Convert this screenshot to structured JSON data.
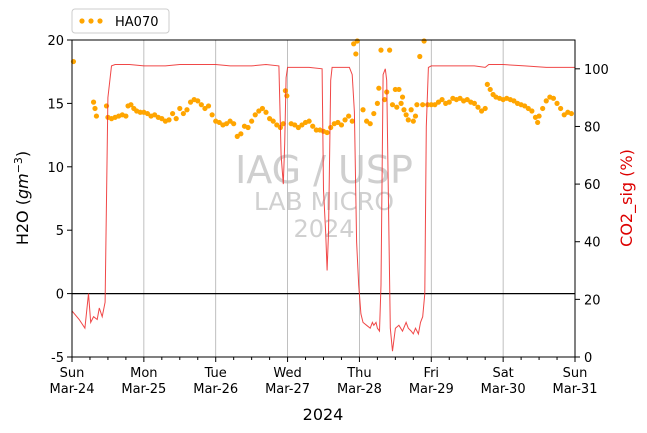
{
  "chart_data": {
    "type": "line",
    "title": "",
    "xlabel": "2024",
    "ylabel_left": "H2O (gm⁻³)",
    "ylabel_left_main": "H2O (",
    "ylabel_left_unit": "gm",
    "ylabel_left_exp": "−3",
    "ylabel_left_close": ")",
    "ylabel_right": "CO2_sig (%)",
    "ylim_left": [
      -5,
      20
    ],
    "ylim_right": [
      0,
      110
    ],
    "yticks_left": [
      -5,
      0,
      5,
      10,
      15,
      20
    ],
    "yticks_right": [
      0,
      20,
      40,
      60,
      80,
      100
    ],
    "xlim_days": [
      0,
      7
    ],
    "xticks": [
      {
        "day": 0,
        "line1": "Sun",
        "line2": "Mar-24"
      },
      {
        "day": 1,
        "line1": "Mon",
        "line2": "Mar-25"
      },
      {
        "day": 2,
        "line1": "Tue",
        "line2": "Mar-26"
      },
      {
        "day": 3,
        "line1": "Wed",
        "line2": "Mar-27"
      },
      {
        "day": 4,
        "line1": "Thu",
        "line2": "Mar-28"
      },
      {
        "day": 5,
        "line1": "Fri",
        "line2": "Mar-29"
      },
      {
        "day": 6,
        "line1": "Sat",
        "line2": "Mar-30"
      },
      {
        "day": 7,
        "line1": "Sun",
        "line2": "Mar-31"
      }
    ],
    "grid": "vertical",
    "legend_position": "top-left",
    "zero_line_left": 0,
    "series": [
      {
        "name": "HA070",
        "axis": "left",
        "style": "dots",
        "color": "#ffa500",
        "points": [
          [
            0.02,
            18.3
          ],
          [
            0.3,
            15.1
          ],
          [
            0.32,
            14.6
          ],
          [
            0.34,
            14.0
          ],
          [
            0.48,
            14.8
          ],
          [
            0.5,
            13.9
          ],
          [
            0.55,
            13.8
          ],
          [
            0.6,
            13.9
          ],
          [
            0.65,
            14.0
          ],
          [
            0.7,
            14.1
          ],
          [
            0.75,
            14.0
          ],
          [
            0.78,
            14.8
          ],
          [
            0.82,
            14.9
          ],
          [
            0.86,
            14.6
          ],
          [
            0.9,
            14.4
          ],
          [
            0.95,
            14.3
          ],
          [
            1.0,
            14.3
          ],
          [
            1.05,
            14.2
          ],
          [
            1.1,
            14.0
          ],
          [
            1.15,
            14.1
          ],
          [
            1.2,
            13.9
          ],
          [
            1.25,
            13.8
          ],
          [
            1.3,
            13.6
          ],
          [
            1.35,
            13.7
          ],
          [
            1.4,
            14.2
          ],
          [
            1.45,
            13.8
          ],
          [
            1.5,
            14.6
          ],
          [
            1.55,
            14.2
          ],
          [
            1.6,
            14.5
          ],
          [
            1.65,
            15.1
          ],
          [
            1.7,
            15.3
          ],
          [
            1.75,
            15.2
          ],
          [
            1.8,
            14.9
          ],
          [
            1.85,
            14.6
          ],
          [
            1.9,
            14.8
          ],
          [
            1.95,
            14.1
          ],
          [
            2.0,
            13.6
          ],
          [
            2.05,
            13.5
          ],
          [
            2.1,
            13.3
          ],
          [
            2.15,
            13.4
          ],
          [
            2.2,
            13.6
          ],
          [
            2.25,
            13.4
          ],
          [
            2.3,
            12.4
          ],
          [
            2.35,
            12.6
          ],
          [
            2.4,
            13.2
          ],
          [
            2.45,
            13.1
          ],
          [
            2.5,
            13.6
          ],
          [
            2.55,
            14.1
          ],
          [
            2.6,
            14.4
          ],
          [
            2.65,
            14.6
          ],
          [
            2.7,
            14.3
          ],
          [
            2.75,
            13.8
          ],
          [
            2.8,
            13.6
          ],
          [
            2.85,
            13.3
          ],
          [
            2.9,
            13.1
          ],
          [
            2.94,
            13.4
          ],
          [
            2.97,
            16.0
          ],
          [
            2.99,
            15.6
          ],
          [
            3.05,
            13.4
          ],
          [
            3.1,
            13.3
          ],
          [
            3.15,
            13.1
          ],
          [
            3.2,
            13.3
          ],
          [
            3.25,
            13.5
          ],
          [
            3.3,
            13.6
          ],
          [
            3.35,
            13.2
          ],
          [
            3.4,
            12.9
          ],
          [
            3.45,
            12.9
          ],
          [
            3.5,
            12.8
          ],
          [
            3.55,
            12.7
          ],
          [
            3.6,
            13.1
          ],
          [
            3.65,
            13.4
          ],
          [
            3.7,
            13.5
          ],
          [
            3.75,
            13.3
          ],
          [
            3.8,
            13.7
          ],
          [
            3.85,
            14.0
          ],
          [
            3.9,
            13.6
          ],
          [
            3.92,
            19.7
          ],
          [
            3.95,
            18.9
          ],
          [
            3.97,
            20.0
          ],
          [
            4.05,
            14.5
          ],
          [
            4.1,
            13.6
          ],
          [
            4.15,
            13.4
          ],
          [
            4.2,
            14.2
          ],
          [
            4.25,
            15.0
          ],
          [
            4.27,
            16.2
          ],
          [
            4.3,
            19.2
          ],
          [
            4.35,
            15.3
          ],
          [
            4.38,
            15.9
          ],
          [
            4.42,
            19.2
          ],
          [
            4.46,
            14.9
          ],
          [
            4.5,
            16.1
          ],
          [
            4.52,
            14.7
          ],
          [
            4.55,
            16.1
          ],
          [
            4.58,
            15.0
          ],
          [
            4.6,
            15.5
          ],
          [
            4.62,
            14.5
          ],
          [
            4.65,
            14.1
          ],
          [
            4.68,
            13.7
          ],
          [
            4.72,
            14.5
          ],
          [
            4.75,
            13.6
          ],
          [
            4.78,
            14.0
          ],
          [
            4.8,
            14.9
          ],
          [
            4.84,
            18.7
          ],
          [
            4.88,
            14.9
          ],
          [
            4.9,
            20.0
          ],
          [
            4.95,
            14.9
          ],
          [
            5.0,
            14.9
          ],
          [
            5.05,
            14.9
          ],
          [
            5.1,
            15.1
          ],
          [
            5.15,
            15.3
          ],
          [
            5.2,
            15.0
          ],
          [
            5.25,
            15.1
          ],
          [
            5.3,
            15.4
          ],
          [
            5.35,
            15.3
          ],
          [
            5.4,
            15.4
          ],
          [
            5.45,
            15.2
          ],
          [
            5.5,
            15.3
          ],
          [
            5.55,
            15.1
          ],
          [
            5.6,
            15.0
          ],
          [
            5.65,
            14.7
          ],
          [
            5.7,
            14.4
          ],
          [
            5.75,
            14.6
          ],
          [
            5.78,
            16.5
          ],
          [
            5.82,
            16.1
          ],
          [
            5.86,
            15.7
          ],
          [
            5.9,
            15.5
          ],
          [
            5.95,
            15.4
          ],
          [
            6.0,
            15.3
          ],
          [
            6.05,
            15.4
          ],
          [
            6.1,
            15.3
          ],
          [
            6.15,
            15.2
          ],
          [
            6.2,
            15.0
          ],
          [
            6.25,
            14.9
          ],
          [
            6.3,
            14.8
          ],
          [
            6.35,
            14.6
          ],
          [
            6.4,
            14.4
          ],
          [
            6.45,
            13.9
          ],
          [
            6.48,
            13.5
          ],
          [
            6.5,
            14.0
          ],
          [
            6.55,
            14.6
          ],
          [
            6.6,
            15.2
          ],
          [
            6.65,
            15.5
          ],
          [
            6.7,
            15.4
          ],
          [
            6.75,
            15.0
          ],
          [
            6.8,
            14.6
          ],
          [
            6.85,
            14.1
          ],
          [
            6.9,
            14.3
          ],
          [
            6.95,
            14.2
          ]
        ]
      },
      {
        "name": "CO2_sig",
        "axis": "right",
        "style": "line",
        "color": "#ee3333",
        "points": [
          [
            0.0,
            16
          ],
          [
            0.1,
            13
          ],
          [
            0.18,
            10
          ],
          [
            0.23,
            22
          ],
          [
            0.26,
            12
          ],
          [
            0.3,
            14
          ],
          [
            0.35,
            13
          ],
          [
            0.38,
            17
          ],
          [
            0.42,
            14
          ],
          [
            0.46,
            19
          ],
          [
            0.5,
            90
          ],
          [
            0.55,
            101
          ],
          [
            0.6,
            101.5
          ],
          [
            0.8,
            101.5
          ],
          [
            1.0,
            101
          ],
          [
            1.3,
            101
          ],
          [
            1.5,
            101.5
          ],
          [
            1.8,
            101.5
          ],
          [
            2.0,
            101.5
          ],
          [
            2.2,
            101
          ],
          [
            2.5,
            101
          ],
          [
            2.7,
            101.5
          ],
          [
            2.88,
            101
          ],
          [
            2.91,
            70
          ],
          [
            2.94,
            60
          ],
          [
            2.96,
            74
          ],
          [
            2.98,
            97
          ],
          [
            3.0,
            100.5
          ],
          [
            3.3,
            100.5
          ],
          [
            3.48,
            100
          ],
          [
            3.5,
            58
          ],
          [
            3.53,
            43
          ],
          [
            3.55,
            30
          ],
          [
            3.57,
            43
          ],
          [
            3.6,
            96
          ],
          [
            3.62,
            100.5
          ],
          [
            3.8,
            100.5
          ],
          [
            3.86,
            100.5
          ],
          [
            3.9,
            98
          ],
          [
            3.93,
            85
          ],
          [
            3.96,
            40
          ],
          [
            3.99,
            25
          ],
          [
            4.02,
            15
          ],
          [
            4.05,
            12
          ],
          [
            4.1,
            11
          ],
          [
            4.15,
            10
          ],
          [
            4.18,
            12
          ],
          [
            4.2,
            11
          ],
          [
            4.23,
            12
          ],
          [
            4.25,
            10
          ],
          [
            4.28,
            9
          ],
          [
            4.3,
            25
          ],
          [
            4.33,
            98
          ],
          [
            4.36,
            100
          ],
          [
            4.38,
            96
          ],
          [
            4.4,
            60
          ],
          [
            4.43,
            10
          ],
          [
            4.46,
            2
          ],
          [
            4.5,
            10
          ],
          [
            4.55,
            11
          ],
          [
            4.6,
            9
          ],
          [
            4.65,
            12
          ],
          [
            4.68,
            10
          ],
          [
            4.72,
            9
          ],
          [
            4.75,
            8
          ],
          [
            4.78,
            10
          ],
          [
            4.82,
            8
          ],
          [
            4.85,
            12
          ],
          [
            4.88,
            14
          ],
          [
            4.91,
            22
          ],
          [
            4.93,
            80
          ],
          [
            4.96,
            100.5
          ],
          [
            5.0,
            101
          ],
          [
            5.3,
            101
          ],
          [
            5.6,
            101
          ],
          [
            5.75,
            100.5
          ],
          [
            5.8,
            101.5
          ],
          [
            6.0,
            101.5
          ],
          [
            6.3,
            101
          ],
          [
            6.6,
            100.5
          ],
          [
            6.8,
            100.5
          ],
          [
            7.0,
            100.5
          ]
        ]
      }
    ],
    "watermark": {
      "line1": "IAG / USP",
      "line2": "LAB MICRO",
      "line3": "2024"
    }
  },
  "legend": {
    "label": "HA070"
  }
}
